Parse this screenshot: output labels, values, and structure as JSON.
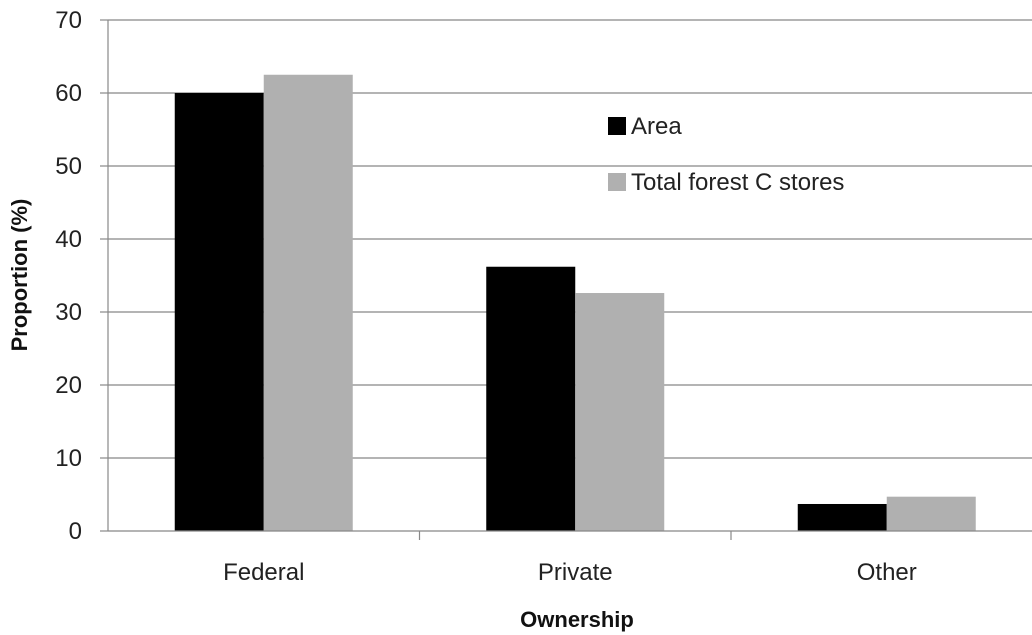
{
  "chart_data": {
    "type": "bar",
    "title": "",
    "xlabel": "Ownership",
    "ylabel": "Proportion (%)",
    "categories": [
      "Federal",
      "Private",
      "Other"
    ],
    "series": [
      {
        "name": "Area",
        "values": [
          60.0,
          36.2,
          3.7
        ],
        "color": "#000000"
      },
      {
        "name": "Total forest C stores",
        "values": [
          62.5,
          32.6,
          4.7
        ],
        "color": "#b0b0b0"
      }
    ],
    "ylim": [
      0,
      70
    ],
    "yticks": [
      "0",
      "10",
      "20",
      "30",
      "40",
      "50",
      "60",
      "70"
    ],
    "grid": true,
    "legend_position": "top-right"
  }
}
